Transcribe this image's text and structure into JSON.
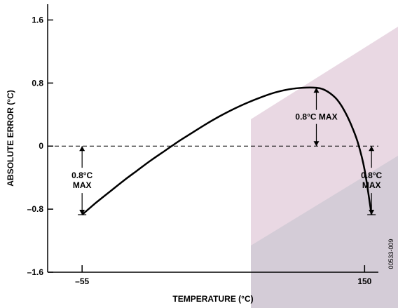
{
  "chart_data": {
    "type": "line",
    "xlabel": "TEMPERATURE (°C)",
    "ylabel": "ABSOLUTE ERROR (°C)",
    "xlim": [
      -80,
      160
    ],
    "ylim": [
      -1.6,
      1.8
    ],
    "x_ticks": [
      -55,
      150
    ],
    "y_ticks": [
      1.6,
      0.8,
      0,
      -0.8,
      -1.6
    ],
    "x_tick_labels": [
      "–55",
      "150"
    ],
    "y_tick_labels": [
      "1.6",
      "0.8",
      "0",
      "–0.8",
      "–1.6"
    ],
    "grid": false,
    "series": [
      {
        "x": [
          -55,
          -45,
          -35,
          -25,
          -15,
          -5,
          5,
          15,
          25,
          35,
          45,
          55,
          65,
          75,
          85,
          95,
          105,
          115,
          120,
          125,
          130,
          135,
          140,
          145,
          150,
          155
        ],
        "y": [
          -0.87,
          -0.72,
          -0.58,
          -0.44,
          -0.31,
          -0.18,
          -0.06,
          0.06,
          0.17,
          0.28,
          0.38,
          0.47,
          0.55,
          0.62,
          0.68,
          0.72,
          0.74,
          0.74,
          0.72,
          0.67,
          0.59,
          0.46,
          0.28,
          0.05,
          -0.3,
          -0.87
        ]
      }
    ],
    "reference_lines": [
      {
        "y": 0,
        "style": "dashed"
      }
    ],
    "annotations": [
      {
        "text": "0.8°C MAX",
        "x": 115,
        "y_from": 0,
        "y_to": 0.74
      },
      {
        "text": [
          "0.8°C",
          "MAX"
        ],
        "x": -55,
        "y_from": 0,
        "y_to": -0.87
      },
      {
        "text": [
          "0.8°C",
          "MAX"
        ],
        "x": 155,
        "y_from": 0,
        "y_to": -0.87
      }
    ],
    "figure_id": "00533-009"
  }
}
